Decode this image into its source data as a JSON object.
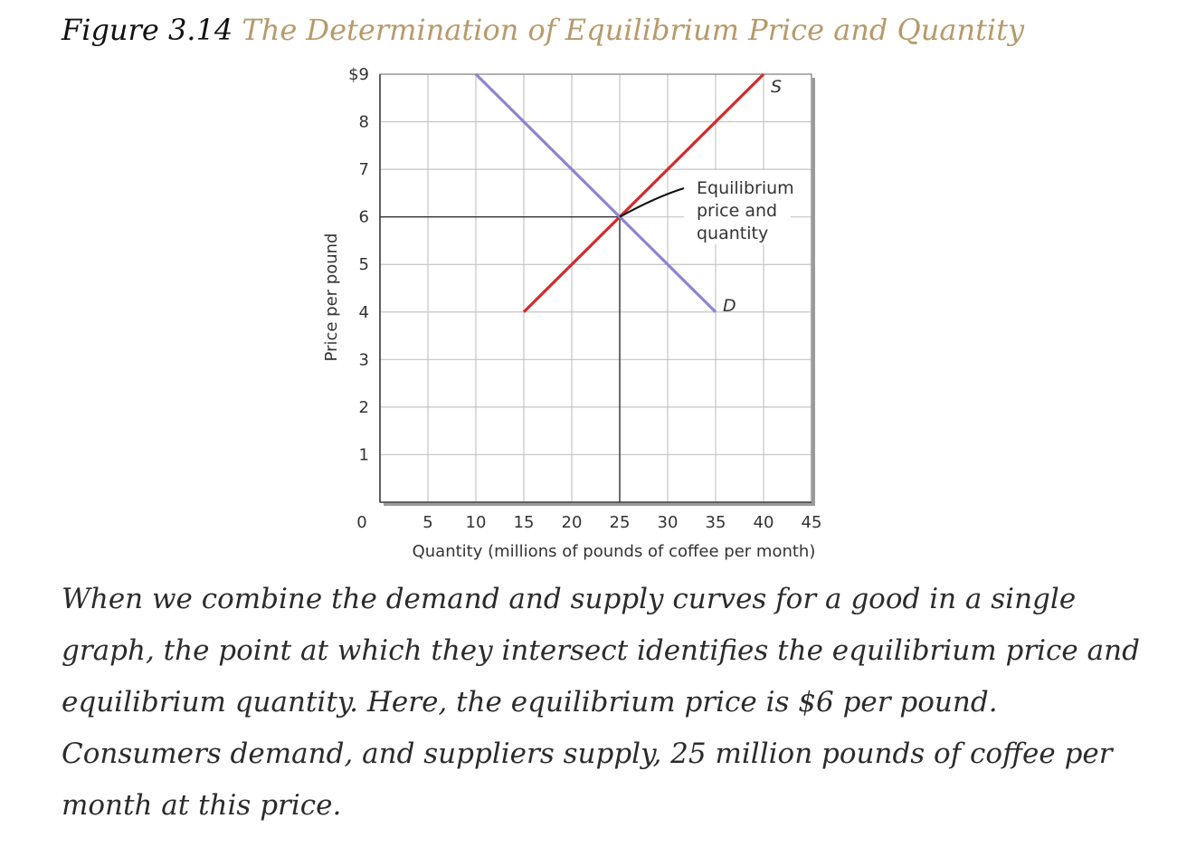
{
  "figure": {
    "number": "Figure 3.14",
    "title": "The Determination of Equilibrium Price and Quantity"
  },
  "caption": "When we combine the demand and supply curves for a good in a single graph, the point at which they intersect identifies the equilibrium price and equilibrium quantity. Here, the equilibrium price is $6 per pound. Consumers demand, and suppliers supply, 25 million pounds of coffee per month at this price.",
  "colors": {
    "supply": "#d42a2a",
    "demand": "#8a86d0",
    "grid": "#c4c4c4",
    "title_accent": "#b79a6a"
  },
  "chart_data": {
    "type": "line",
    "xlabel": "Quantity (millions of pounds of coffee per month)",
    "ylabel": "Price per pound",
    "xlim": [
      0,
      45
    ],
    "ylim": [
      0,
      9
    ],
    "x_ticks": [
      0,
      5,
      10,
      15,
      20,
      25,
      30,
      35,
      40,
      45
    ],
    "x_tick_labels": [
      "0",
      "5",
      "10",
      "15",
      "20",
      "25",
      "30",
      "35",
      "40",
      "45"
    ],
    "y_ticks": [
      1,
      2,
      3,
      4,
      5,
      6,
      7,
      8,
      9
    ],
    "y_tick_labels": [
      "1",
      "2",
      "3",
      "4",
      "5",
      "6",
      "7",
      "8",
      "$9"
    ],
    "grid": true,
    "series": [
      {
        "name": "S",
        "points": [
          [
            15,
            4
          ],
          [
            40,
            9
          ]
        ]
      },
      {
        "name": "D",
        "points": [
          [
            10,
            9
          ],
          [
            35,
            4
          ]
        ]
      }
    ],
    "equilibrium": {
      "x": 25,
      "y": 6
    },
    "annotations": [
      {
        "text_lines": [
          "Equilibrium",
          "price and",
          "quantity"
        ],
        "target": [
          25,
          6
        ]
      }
    ]
  }
}
